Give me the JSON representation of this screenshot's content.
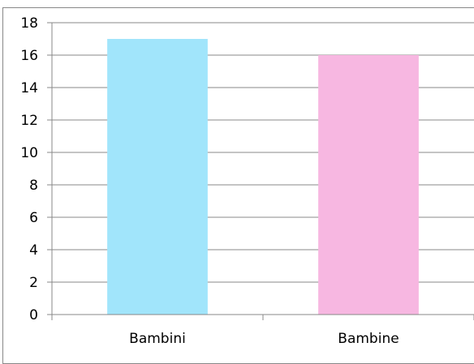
{
  "chart_data": {
    "type": "bar",
    "title": "",
    "xlabel": "",
    "ylabel": "",
    "categories": [
      "Bambini",
      "Bambine"
    ],
    "values": [
      17,
      16
    ],
    "bar_colors": [
      "#a1e5fb",
      "#f7b7e1"
    ],
    "ylim": [
      0,
      18
    ],
    "yticks": [
      "0",
      "2",
      "4",
      "6",
      "8",
      "10",
      "12",
      "14",
      "16",
      "18"
    ],
    "grid": true,
    "legend": "none"
  },
  "colors": {
    "gridline": "#888888",
    "axis": "#888888"
  }
}
